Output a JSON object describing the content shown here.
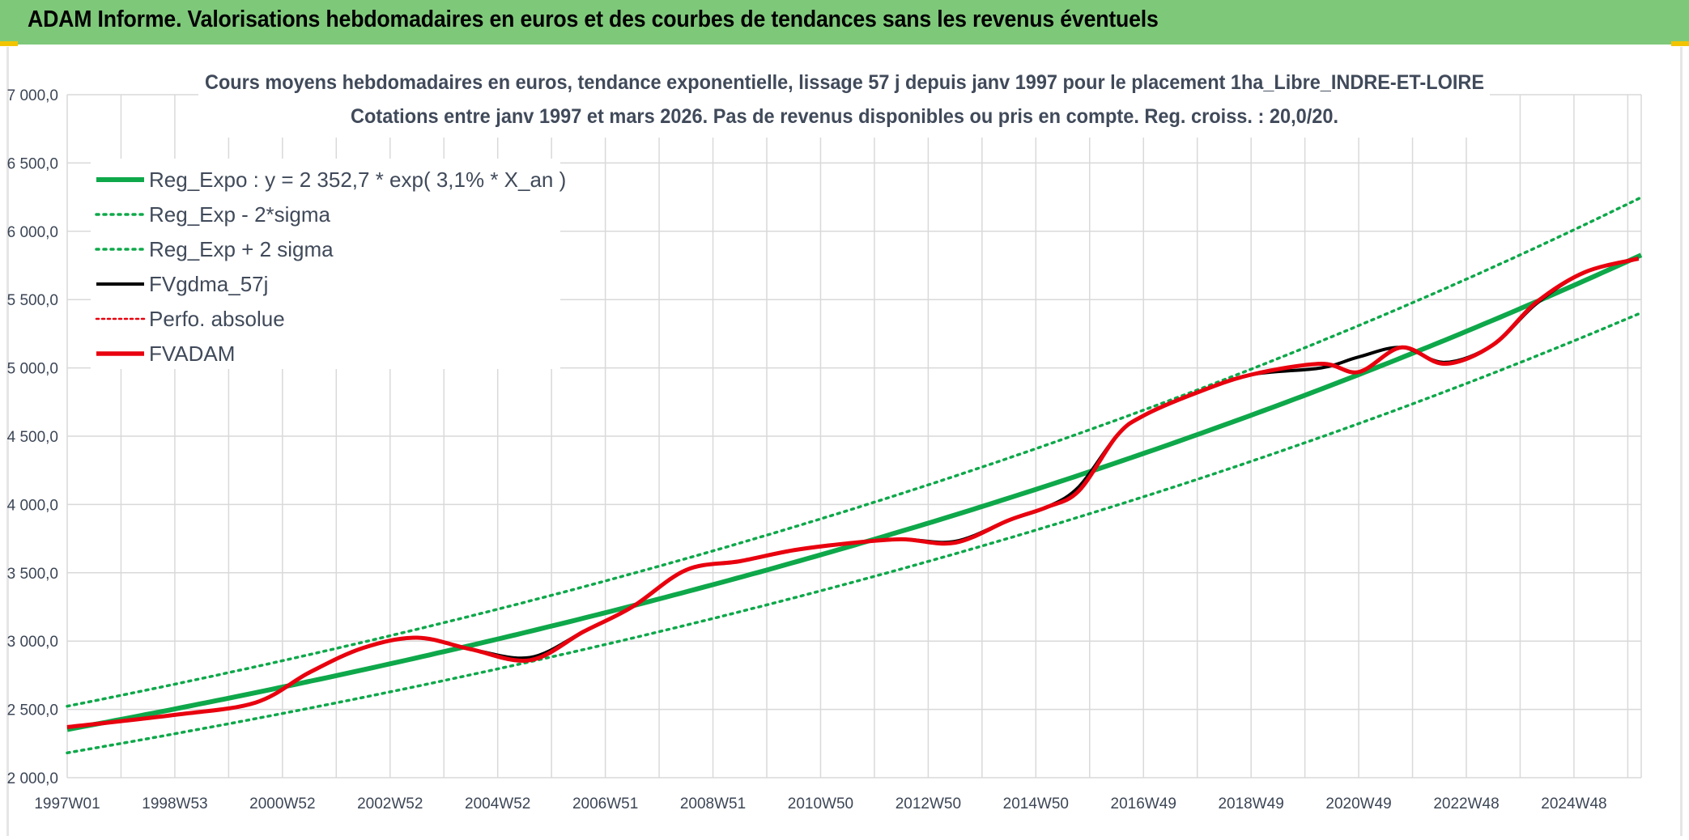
{
  "banner": {
    "title": "ADAM Informe. Valorisations hebdomadaires en euros et des courbes de tendances sans les revenus éventuels"
  },
  "colors": {
    "banner_bg": "#7ec87a",
    "green": "#0ea84a",
    "red": "#e8000e",
    "black": "#000000",
    "grid": "#d9d9d9"
  },
  "chart_data": {
    "type": "line",
    "title_lines": [
      "Cours moyens hebdomadaires en euros, tendance exponentielle, lissage 57 j depuis janv 1997 pour le placement 1ha_Libre_INDRE-ET-LOIRE",
      "Cotations entre janv 1997 et mars 2026. Pas de revenus disponibles ou pris en compte. Reg. croiss. : 20,0/20."
    ],
    "ylim": [
      2000,
      7000
    ],
    "yticks": [
      "2 000,0",
      "2 500,0",
      "3 000,0",
      "3 500,0",
      "4 000,0",
      "4 500,0",
      "5 000,0",
      "5 500,0",
      "6 000,0",
      "6 500,0",
      "7 000,0"
    ],
    "xlim": [
      1997.0,
      2026.25
    ],
    "xticks": [
      {
        "label": "1997W01",
        "x": 1997.0
      },
      {
        "label": "1998W53",
        "x": 1999.0
      },
      {
        "label": "2000W52",
        "x": 2001.0
      },
      {
        "label": "2002W52",
        "x": 2003.0
      },
      {
        "label": "2004W52",
        "x": 2005.0
      },
      {
        "label": "2006W51",
        "x": 2007.0
      },
      {
        "label": "2008W51",
        "x": 2009.0
      },
      {
        "label": "2010W50",
        "x": 2011.0
      },
      {
        "label": "2012W50",
        "x": 2013.0
      },
      {
        "label": "2014W50",
        "x": 2015.0
      },
      {
        "label": "2016W49",
        "x": 2017.0
      },
      {
        "label": "2018W49",
        "x": 2019.0
      },
      {
        "label": "2020W49",
        "x": 2021.0
      },
      {
        "label": "2022W48",
        "x": 2023.0
      },
      {
        "label": "2024W48",
        "x": 2025.0
      }
    ],
    "grid": true,
    "legend_placement": "top-left",
    "regression": {
      "a": 2352.7,
      "rate": 0.031,
      "sigma_factor": 0.0725
    },
    "series": [
      {
        "name": "Reg_Expo : y = 2 352,7 * exp( 3,1% *  X_an )",
        "style": "green-thick"
      },
      {
        "name": "Reg_Exp - 2*sigma",
        "style": "green-dotted"
      },
      {
        "name": "Reg_Exp + 2 sigma",
        "style": "green-dotted"
      },
      {
        "name": "FVgdma_57j",
        "style": "black",
        "x": [
          1997.0,
          1999.0,
          2000.5,
          2001.5,
          2002.5,
          2003.5,
          2004.5,
          2005.6,
          2006.6,
          2007.5,
          2008.5,
          2009.5,
          2010.5,
          2011.5,
          2012.5,
          2013.5,
          2014.5,
          2015.2,
          2015.8,
          2016.5,
          2017.0,
          2018.0,
          2019.0,
          2020.3,
          2021.0,
          2021.8,
          2022.6,
          2023.5,
          2024.3,
          2025.2,
          2026.2
        ],
        "values": [
          2370,
          2460,
          2550,
          2770,
          2950,
          3025,
          2940,
          2880,
          3070,
          3250,
          3520,
          3585,
          3665,
          3715,
          3745,
          3730,
          3885,
          3980,
          4130,
          4500,
          4650,
          4820,
          4950,
          5000,
          5080,
          5150,
          5040,
          5170,
          5470,
          5700,
          5800
        ]
      },
      {
        "name": "Perfo. absolue",
        "style": "red-dotted"
      },
      {
        "name": "FVADAM",
        "style": "red-thick",
        "x": [
          1997.0,
          1999.0,
          2000.5,
          2001.5,
          2002.5,
          2003.5,
          2004.5,
          2005.6,
          2006.6,
          2007.5,
          2008.5,
          2009.5,
          2010.5,
          2011.5,
          2012.5,
          2013.5,
          2014.5,
          2015.2,
          2015.8,
          2016.5,
          2017.0,
          2018.0,
          2019.0,
          2020.3,
          2021.0,
          2021.8,
          2022.6,
          2023.5,
          2024.3,
          2025.2,
          2026.2
        ],
        "values": [
          2370,
          2460,
          2550,
          2770,
          2950,
          3025,
          2940,
          2860,
          3070,
          3250,
          3520,
          3585,
          3665,
          3715,
          3745,
          3720,
          3885,
          3980,
          4100,
          4500,
          4650,
          4820,
          4950,
          5030,
          4970,
          5150,
          5030,
          5170,
          5480,
          5700,
          5800
        ]
      }
    ]
  }
}
